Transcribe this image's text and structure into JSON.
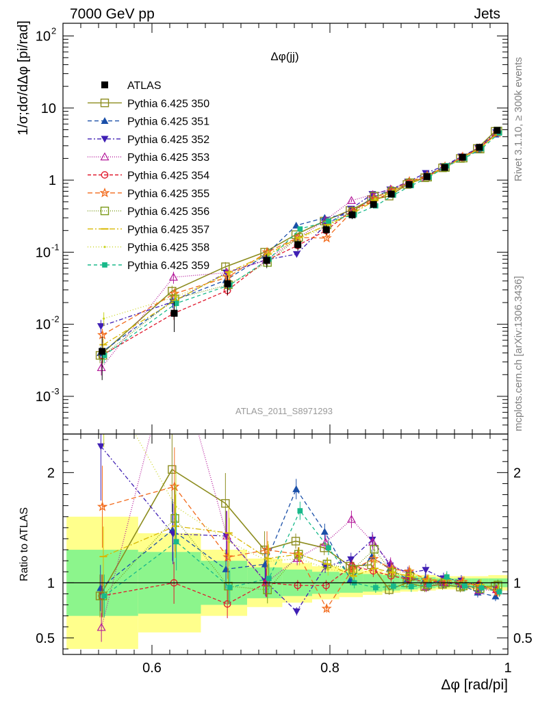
{
  "header": {
    "energy": "7000 GeV pp",
    "process": "Jets",
    "side_top": "Rivet 3.1.10, ≥ 300k events",
    "side_bottom": "mcplots.cern.ch [arXiv:1306.3436]",
    "analysis": "ATLAS_2011_S8971293"
  },
  "chart_data": [
    {
      "type": "line",
      "title": "Δφ(jj)",
      "ylabel": "1/σ;dσ/dΔφ [pi/rad]",
      "xlabel": "",
      "yscale": "log",
      "ylim": [
        0.0003,
        150
      ],
      "xlim": [
        0.5,
        1.0
      ],
      "xticks": [
        0.6,
        0.8,
        1.0
      ],
      "yticks": [
        "10^-3",
        "10^-2",
        "10^-1",
        "1",
        "10",
        "10^2"
      ],
      "legend_position": "top-left",
      "x": [
        0.544,
        0.625,
        0.685,
        0.729,
        0.764,
        0.796,
        0.825,
        0.849,
        0.869,
        0.889,
        0.909,
        0.929,
        0.949,
        0.968,
        0.988
      ],
      "reference": {
        "name": "ATLAS",
        "values": [
          0.0042,
          0.0142,
          0.0365,
          0.077,
          0.127,
          0.205,
          0.33,
          0.46,
          0.64,
          0.87,
          1.12,
          1.5,
          2.08,
          2.85,
          4.9
        ],
        "band_inner": [
          0.3,
          0.28,
          0.2,
          0.14,
          0.12,
          0.1,
          0.09,
          0.08,
          0.07,
          0.06,
          0.05,
          0.04,
          0.04,
          0.04,
          0.04
        ],
        "band_outer": [
          0.6,
          0.45,
          0.3,
          0.22,
          0.18,
          0.15,
          0.13,
          0.11,
          0.09,
          0.08,
          0.07,
          0.06,
          0.06,
          0.06,
          0.07
        ]
      },
      "series": [
        {
          "name": "Pythia 6.425 350",
          "color": "#8c8c1e",
          "marker": "open-square",
          "dash": "",
          "values": [
            0.0037,
            0.0288,
            0.0628,
            0.1,
            0.175,
            0.27,
            0.38,
            0.535,
            0.6,
            0.87,
            1.08,
            1.48,
            2.0,
            2.75,
            4.75
          ]
        },
        {
          "name": "Pythia 6.425 351",
          "color": "#1a4fa8",
          "marker": "filled-triangle-up",
          "dash": "6,4",
          "values": [
            0.004,
            0.021,
            0.041,
            0.09,
            0.235,
            0.3,
            0.34,
            0.57,
            0.72,
            0.9,
            1.16,
            1.5,
            2.05,
            2.6,
            4.3
          ]
        },
        {
          "name": "Pythia 6.425 352",
          "color": "#3f1fb4",
          "marker": "filled-triangle-down",
          "dash": "6,3,2,3",
          "values": [
            0.0094,
            0.0205,
            0.052,
            0.078,
            0.094,
            0.235,
            0.4,
            0.64,
            0.74,
            0.95,
            1.25,
            1.56,
            2.12,
            2.78,
            4.6
          ]
        },
        {
          "name": "Pythia 6.425 353",
          "color": "#b4199a",
          "marker": "open-triangle-up",
          "dash": "1,2",
          "values": [
            0.0025,
            0.045,
            0.052,
            0.077,
            0.155,
            0.28,
            0.52,
            0.63,
            0.75,
            0.93,
            1.08,
            1.5,
            2.08,
            2.65,
            4.6
          ]
        },
        {
          "name": "Pythia 6.425 354",
          "color": "#e0182c",
          "marker": "open-circle",
          "dash": "5,3",
          "values": [
            0.0037,
            0.0142,
            0.0295,
            0.077,
            0.124,
            0.2,
            0.38,
            0.51,
            0.68,
            0.9,
            1.13,
            1.52,
            2.05,
            2.8,
            4.55
          ]
        },
        {
          "name": "Pythia 6.425 355",
          "color": "#f26a1b",
          "marker": "star",
          "dash": "7,4",
          "values": [
            0.0071,
            0.0266,
            0.045,
            0.1,
            0.16,
            0.157,
            0.37,
            0.56,
            0.72,
            0.96,
            1.15,
            1.54,
            2.1,
            2.75,
            4.5
          ]
        },
        {
          "name": "Pythia 6.425 356",
          "color": "#7a9a18",
          "marker": "open-square",
          "dash": "1,2",
          "values": [
            0.0037,
            0.0225,
            0.0354,
            0.072,
            0.16,
            0.24,
            0.37,
            0.6,
            0.7,
            0.92,
            1.1,
            1.5,
            2.02,
            2.7,
            4.8
          ]
        },
        {
          "name": "Pythia 6.425 357",
          "color": "#d8b800",
          "marker": "dash",
          "dash": "8,3,2,3",
          "values": [
            0.0052,
            0.0215,
            0.053,
            0.094,
            0.16,
            0.24,
            0.35,
            0.52,
            0.7,
            0.92,
            1.14,
            1.54,
            2.06,
            2.8,
            4.55
          ]
        },
        {
          "name": "Pythia 6.425 358",
          "color": "#c8d41c",
          "marker": "dot",
          "dash": "1,3",
          "values": [
            0.012,
            0.024,
            0.05,
            0.092,
            0.155,
            0.23,
            0.36,
            0.55,
            0.71,
            0.94,
            1.15,
            1.56,
            2.1,
            2.8,
            4.6
          ]
        },
        {
          "name": "Pythia 6.425 359",
          "color": "#18b98a",
          "marker": "filled-square",
          "dash": "5,4",
          "values": [
            0.0037,
            0.0195,
            0.035,
            0.08,
            0.21,
            0.27,
            0.33,
            0.44,
            0.62,
            0.84,
            1.1,
            1.58,
            2.02,
            2.72,
            4.5
          ]
        }
      ]
    },
    {
      "type": "line",
      "title": "",
      "ylabel": "Ratio to ATLAS",
      "xlabel": "Δφ [rad/pi]",
      "ylim": [
        0.35,
        2.35
      ],
      "yticks": [
        0.5,
        1,
        2
      ],
      "xticks": [
        0.6,
        0.8,
        1.0
      ],
      "xticklabels": [
        "0.6",
        "0.8",
        "1"
      ],
      "reference_line": 1
    }
  ]
}
